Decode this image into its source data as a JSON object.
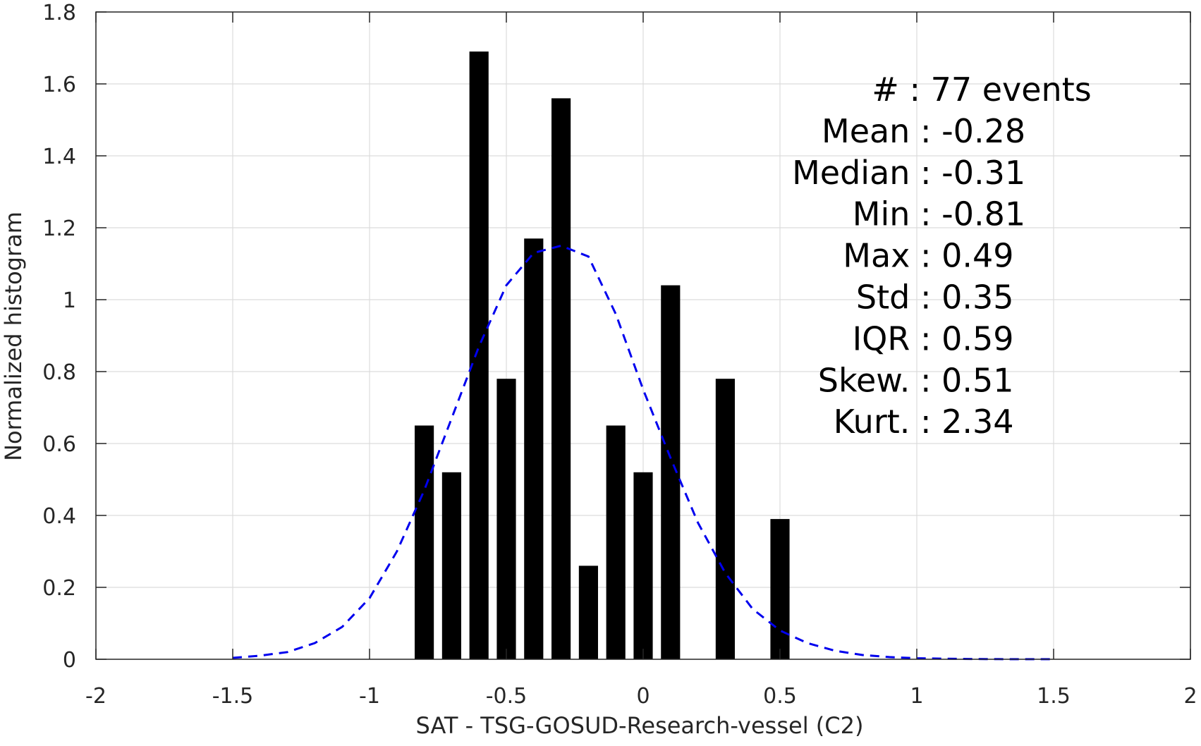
{
  "chart_data": {
    "type": "bar",
    "xlabel": "SAT - TSG-GOSUD-Research-vessel (C2)",
    "ylabel": "Normalized histogram",
    "xlim": [
      -2,
      2
    ],
    "ylim": [
      0,
      1.8
    ],
    "x_ticks": [
      "-2",
      "-1.5",
      "-1",
      "-0.5",
      "0",
      "0.5",
      "1",
      "1.5",
      "2"
    ],
    "y_ticks": [
      "0",
      "0.2",
      "0.4",
      "0.6",
      "0.8",
      "1",
      "1.2",
      "1.4",
      "1.6",
      "1.8"
    ],
    "grid": true,
    "bar_color": "#000000",
    "bar_width": 0.07,
    "bars": [
      {
        "x": -0.8,
        "value": 0.65
      },
      {
        "x": -0.7,
        "value": 0.52
      },
      {
        "x": -0.6,
        "value": 1.69
      },
      {
        "x": -0.5,
        "value": 0.78
      },
      {
        "x": -0.4,
        "value": 1.17
      },
      {
        "x": -0.3,
        "value": 1.56
      },
      {
        "x": -0.2,
        "value": 0.26
      },
      {
        "x": -0.1,
        "value": 0.65
      },
      {
        "x": 0.0,
        "value": 0.52
      },
      {
        "x": 0.1,
        "value": 1.04
      },
      {
        "x": 0.3,
        "value": 0.78
      },
      {
        "x": 0.5,
        "value": 0.39
      }
    ],
    "fit_curve": {
      "color": "#0000ee",
      "style": "dashed",
      "x": [
        -1.5,
        -1.4,
        -1.3,
        -1.2,
        -1.1,
        -1.0,
        -0.9,
        -0.8,
        -0.7,
        -0.6,
        -0.5,
        -0.4,
        -0.3,
        -0.2,
        -0.1,
        0.0,
        0.1,
        0.2,
        0.3,
        0.4,
        0.5,
        0.6,
        0.7,
        0.8,
        0.9,
        1.0,
        1.1,
        1.2,
        1.3,
        1.4,
        1.5
      ],
      "y": [
        0.004,
        0.01,
        0.02,
        0.045,
        0.09,
        0.17,
        0.3,
        0.47,
        0.67,
        0.87,
        1.04,
        1.13,
        1.15,
        1.12,
        0.96,
        0.75,
        0.56,
        0.38,
        0.24,
        0.14,
        0.08,
        0.045,
        0.024,
        0.012,
        0.006,
        0.003,
        0.0015,
        0.0008,
        0.0004,
        0.0002,
        0.0001
      ]
    },
    "stats": [
      "#  : 77 events",
      "Mean : -0.28",
      "Median : -0.31",
      "Min : -0.81",
      "Max : 0.49",
      "Std : 0.35",
      "IQR : 0.59",
      "Skew. : 0.51",
      "Kurt. : 2.34"
    ]
  }
}
